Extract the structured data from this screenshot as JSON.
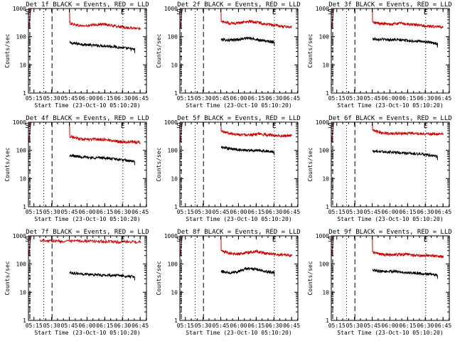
{
  "figure": {
    "background": "#ffffff",
    "colors": {
      "events": "#000000",
      "lld": "#cc0000",
      "axes": "#000000"
    }
  },
  "chart_data": [
    {
      "type": "line",
      "title": "Det 1f BLACK = Events, RED = LLD",
      "xlabel": "Start Time (23-Oct-10 05:10:20)",
      "ylabel": "Counts/sec",
      "x_ticks": [
        "05:15",
        "05:30",
        "05:45",
        "06:00",
        "06:15",
        "06:30",
        "06:45"
      ],
      "y_ticks": [
        "1",
        "10",
        "100",
        "1000"
      ],
      "y_scale": "log",
      "ylim": [
        1,
        1000
      ],
      "grid": false,
      "markers": {
        "start": "S",
        "end": "E"
      },
      "series": [
        {
          "name": "Events",
          "color": "#000000",
          "start_minute": 35,
          "end_minute": 90,
          "levels": [
            60,
            55,
            50,
            48,
            45,
            40,
            35
          ]
        },
        {
          "name": "LLD",
          "color": "#cc0000",
          "start_minute": 35,
          "end_minute": 95,
          "levels": [
            300,
            250,
            240,
            270,
            280,
            240,
            220,
            200,
            200
          ]
        }
      ]
    },
    {
      "type": "line",
      "title": "Det 2f BLACK = Events, RED = LLD",
      "xlabel": "Start Time (23-Oct-10 05:10:20)",
      "ylabel": "Counts/sec",
      "x_ticks": [
        "05:15",
        "05:30",
        "05:45",
        "06:00",
        "06:15",
        "06:30",
        "06:45"
      ],
      "y_ticks": [
        "1",
        "10",
        "100",
        "1000"
      ],
      "y_scale": "log",
      "ylim": [
        1,
        1000
      ],
      "grid": false,
      "markers": {
        "start": "S",
        "end": "E"
      },
      "series": [
        {
          "name": "Events",
          "color": "#000000",
          "start_minute": 35,
          "end_minute": 80,
          "levels": [
            80,
            75,
            80,
            90,
            80,
            70,
            65
          ]
        },
        {
          "name": "LLD",
          "color": "#cc0000",
          "start_minute": 35,
          "end_minute": 95,
          "levels": [
            350,
            300,
            310,
            350,
            330,
            280,
            250,
            230,
            220
          ]
        }
      ]
    },
    {
      "type": "line",
      "title": "Det 3f BLACK = Events, RED = LLD",
      "xlabel": "Start Time (23-Oct-10 05:10:20)",
      "ylabel": "Counts/sec",
      "x_ticks": [
        "05:15",
        "05:30",
        "05:45",
        "06:00",
        "06:15",
        "06:30",
        "06:45"
      ],
      "y_ticks": [
        "1",
        "10",
        "100",
        "1000"
      ],
      "y_scale": "log",
      "ylim": [
        1,
        1000
      ],
      "grid": false,
      "markers": {
        "start": "S",
        "end": "E"
      },
      "series": [
        {
          "name": "Events",
          "color": "#000000",
          "start_minute": 35,
          "end_minute": 90,
          "levels": [
            85,
            80,
            78,
            75,
            70,
            65,
            55
          ]
        },
        {
          "name": "LLD",
          "color": "#cc0000",
          "start_minute": 35,
          "end_minute": 95,
          "levels": [
            320,
            290,
            280,
            300,
            280,
            260,
            240,
            230,
            220
          ]
        }
      ]
    },
    {
      "type": "line",
      "title": "Det 4f BLACK = Events, RED = LLD",
      "xlabel": "Start Time (23-Oct-10 05:10:20)",
      "ylabel": "Counts/sec",
      "x_ticks": [
        "05:15",
        "05:30",
        "05:45",
        "06:00",
        "06:15",
        "06:30",
        "06:45"
      ],
      "y_ticks": [
        "1",
        "10",
        "100",
        "1000"
      ],
      "y_scale": "log",
      "ylim": [
        1,
        1000
      ],
      "grid": false,
      "markers": {
        "start": "S",
        "end": "E"
      },
      "series": [
        {
          "name": "Events",
          "color": "#000000",
          "start_minute": 35,
          "end_minute": 90,
          "levels": [
            65,
            60,
            55,
            55,
            50,
            45,
            40
          ]
        },
        {
          "name": "LLD",
          "color": "#cc0000",
          "start_minute": 35,
          "end_minute": 95,
          "levels": [
            320,
            260,
            240,
            250,
            240,
            220,
            200,
            200,
            190
          ]
        }
      ]
    },
    {
      "type": "line",
      "title": "Det 5f BLACK = Events, RED = LLD",
      "xlabel": "Start Time (23-Oct-10 05:10:20)",
      "ylabel": "Counts/sec",
      "x_ticks": [
        "05:15",
        "05:30",
        "05:45",
        "06:00",
        "06:15",
        "06:30",
        "06:45"
      ],
      "y_ticks": [
        "1",
        "10",
        "100",
        "1000"
      ],
      "y_scale": "log",
      "ylim": [
        1,
        1000
      ],
      "grid": false,
      "markers": {
        "start": "S",
        "end": "E"
      },
      "series": [
        {
          "name": "Events",
          "color": "#000000",
          "start_minute": 35,
          "end_minute": 80,
          "levels": [
            130,
            115,
            105,
            100,
            100,
            95,
            90
          ]
        },
        {
          "name": "LLD",
          "color": "#cc0000",
          "start_minute": 35,
          "end_minute": 95,
          "levels": [
            480,
            400,
            370,
            360,
            380,
            360,
            340,
            330,
            330
          ]
        }
      ]
    },
    {
      "type": "line",
      "title": "Det 6f BLACK = Events, RED = LLD",
      "xlabel": "Start Time (23-Oct-10 05:10:20)",
      "ylabel": "Counts/sec",
      "x_ticks": [
        "05:15",
        "05:30",
        "05:45",
        "06:00",
        "06:15",
        "06:30",
        "06:45"
      ],
      "y_ticks": [
        "1",
        "10",
        "100",
        "1000"
      ],
      "y_scale": "log",
      "ylim": [
        1,
        1000
      ],
      "grid": false,
      "markers": {
        "start": "S",
        "end": "E"
      },
      "series": [
        {
          "name": "Events",
          "color": "#000000",
          "start_minute": 35,
          "end_minute": 90,
          "levels": [
            95,
            90,
            85,
            80,
            75,
            70,
            60
          ]
        },
        {
          "name": "LLD",
          "color": "#cc0000",
          "start_minute": 35,
          "end_minute": 95,
          "levels": [
            500,
            430,
            400,
            400,
            410,
            400,
            390,
            380,
            380
          ]
        }
      ]
    },
    {
      "type": "line",
      "title": "Det 7f BLACK = Events, RED = LLD",
      "xlabel": "Start Time (23-Oct-10 05:10:20)",
      "ylabel": "Counts/sec",
      "x_ticks": [
        "05:15",
        "05:30",
        "05:45",
        "06:00",
        "06:15",
        "06:30",
        "06:45"
      ],
      "y_ticks": [
        "1",
        "10",
        "100",
        "1000"
      ],
      "y_scale": "log",
      "ylim": [
        1,
        1000
      ],
      "grid": false,
      "markers": {
        "start": "S",
        "end": "E"
      },
      "series": [
        {
          "name": "Events",
          "color": "#000000",
          "start_minute": 35,
          "end_minute": 90,
          "levels": [
            50,
            45,
            43,
            40,
            40,
            38,
            35
          ]
        },
        {
          "name": "LLD",
          "color": "#cc0000",
          "start_minute": 10,
          "end_minute": 95,
          "levels": [
            700,
            680,
            650,
            640,
            660,
            650,
            640,
            620,
            600,
            620,
            600
          ]
        }
      ]
    },
    {
      "type": "line",
      "title": "Det 8f BLACK = Events, RED = LLD",
      "xlabel": "Start Time (23-Oct-10 05:10:20)",
      "ylabel": "Counts/sec",
      "x_ticks": [
        "05:15",
        "05:30",
        "05:45",
        "06:00",
        "06:15",
        "06:30",
        "06:45"
      ],
      "y_ticks": [
        "1",
        "10",
        "100",
        "1000"
      ],
      "y_scale": "log",
      "ylim": [
        1,
        1000
      ],
      "grid": false,
      "markers": {
        "start": "S",
        "end": "E"
      },
      "series": [
        {
          "name": "Events",
          "color": "#000000",
          "start_minute": 35,
          "end_minute": 80,
          "levels": [
            55,
            50,
            55,
            70,
            65,
            55,
            50
          ]
        },
        {
          "name": "LLD",
          "color": "#cc0000",
          "start_minute": 35,
          "end_minute": 95,
          "levels": [
            300,
            240,
            230,
            260,
            280,
            240,
            220,
            210,
            200
          ]
        }
      ]
    },
    {
      "type": "line",
      "title": "Det 9f BLACK = Events, RED = LLD",
      "xlabel": "Start Time (23-Oct-10 05:10:20)",
      "ylabel": "Counts/sec",
      "x_ticks": [
        "05:15",
        "05:30",
        "05:45",
        "06:00",
        "06:15",
        "06:30",
        "06:45"
      ],
      "y_ticks": [
        "1",
        "10",
        "100",
        "1000"
      ],
      "y_scale": "log",
      "ylim": [
        1,
        1000
      ],
      "grid": false,
      "markers": {
        "start": "S",
        "end": "E"
      },
      "series": [
        {
          "name": "Events",
          "color": "#000000",
          "start_minute": 35,
          "end_minute": 90,
          "levels": [
            60,
            55,
            55,
            50,
            48,
            45,
            40
          ]
        },
        {
          "name": "LLD",
          "color": "#cc0000",
          "start_minute": 35,
          "end_minute": 95,
          "levels": [
            260,
            220,
            210,
            220,
            220,
            200,
            200,
            190,
            190
          ]
        }
      ]
    }
  ]
}
